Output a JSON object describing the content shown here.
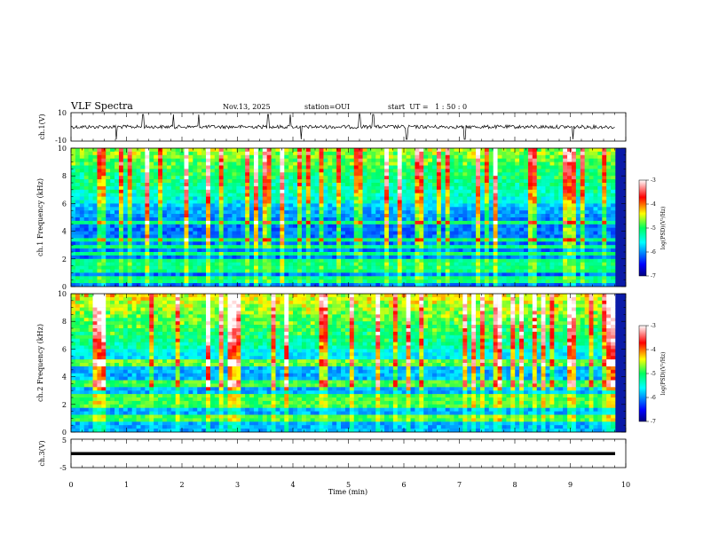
{
  "header": {
    "title": "VLF Spectra",
    "date": "Nov.13, 2025",
    "station": "station=OUI",
    "start_ut": "start  UT =   1 : 50 : 0"
  },
  "colors": {
    "spectrum_low": "#00007f",
    "spectrum_mid": "#00ff60",
    "spectrum_high": "#ff0000",
    "trace": "#000000"
  },
  "chart_data": [
    {
      "id": "ch1-waveform",
      "type": "line",
      "ylabel": "ch.1(V)",
      "ylim": [
        -10,
        10
      ],
      "yticks": [
        "10",
        "-10"
      ],
      "xlim": [
        0,
        10
      ],
      "baseline": 0,
      "spike_times": [
        0.82,
        1.3,
        1.85,
        2.3,
        3.55,
        3.95,
        4.15,
        5.2,
        5.45,
        6.05,
        7.1,
        9.05
      ]
    },
    {
      "id": "ch1-spectrogram",
      "type": "heatmap",
      "ylabel": "ch.1 Frequency (kHz)",
      "ylim": [
        0,
        10
      ],
      "yticks": [
        "0",
        "2",
        "4",
        "6",
        "8",
        "10"
      ],
      "xlim": [
        0,
        10
      ],
      "colorbar": {
        "label": "log(PSD)(V²/Hz)",
        "range": [
          -7,
          -3
        ],
        "ticks": [
          "-3",
          "-4",
          "-5",
          "-6",
          "-7"
        ]
      },
      "bands_khz": [
        0.3,
        0.7,
        1.1,
        1.5,
        1.9,
        2.3,
        2.9,
        3.4,
        4.7
      ]
    },
    {
      "id": "ch2-spectrogram",
      "type": "heatmap",
      "ylabel": "ch.2 Frequency (kHz)",
      "ylim": [
        0,
        10
      ],
      "yticks": [
        "0",
        "2",
        "4",
        "6",
        "8",
        "10"
      ],
      "xlim": [
        0,
        10
      ],
      "colorbar": {
        "label": "log(PSD)(V²/Hz)",
        "range": [
          -7,
          -3
        ],
        "ticks": [
          "-3",
          "-4",
          "-5",
          "-6",
          "-7"
        ]
      },
      "bands_khz": [
        1.0,
        2.0,
        2.5,
        3.5,
        5.0
      ]
    },
    {
      "id": "ch3-waveform",
      "type": "line",
      "ylabel": "ch.3(V)",
      "ylim": [
        -5,
        5
      ],
      "yticks": [
        "5",
        "-5"
      ],
      "xlim": [
        0,
        10
      ],
      "baseline": 0
    }
  ],
  "xaxis": {
    "label": "Time (min)",
    "ticks": [
      "0",
      "1",
      "2",
      "3",
      "4",
      "5",
      "6",
      "7",
      "8",
      "9",
      "10"
    ]
  }
}
